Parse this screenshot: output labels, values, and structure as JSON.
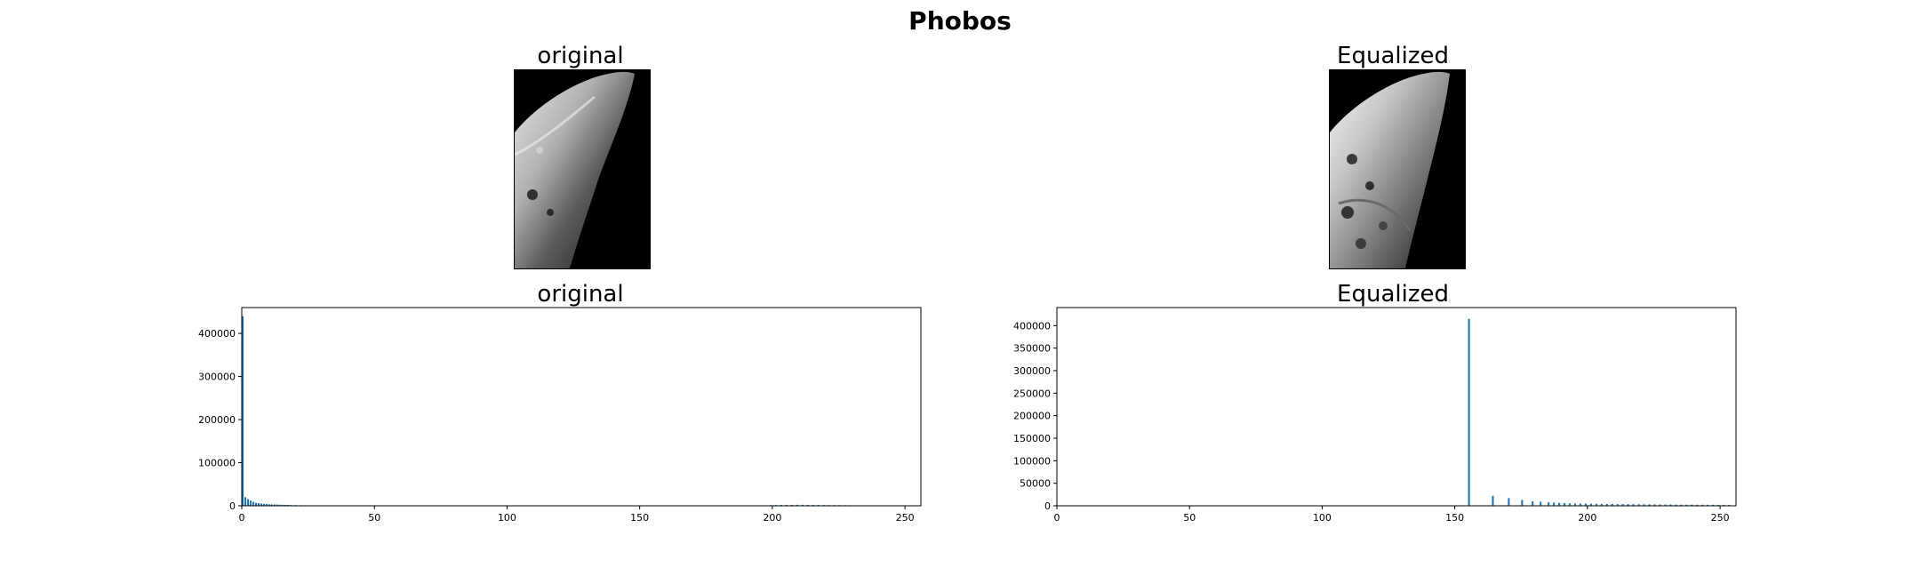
{
  "figure": {
    "title": "Phobos"
  },
  "images": [
    {
      "title": "original",
      "kind": "grayscale-photo"
    },
    {
      "title": "Equalized",
      "kind": "grayscale-photo"
    }
  ],
  "colors": {
    "bar": "#1f77b4",
    "axes": "#000000"
  },
  "chart_data": [
    {
      "type": "bar",
      "title": "original",
      "xlabel": "",
      "ylabel": "",
      "xlim": [
        0,
        256
      ],
      "ylim": [
        0,
        460000
      ],
      "xticks": [
        0,
        50,
        100,
        150,
        200,
        250
      ],
      "yticks": [
        0,
        100000,
        200000,
        300000,
        400000
      ],
      "grid": false,
      "series": [
        {
          "x": [
            0,
            1,
            2,
            3,
            4,
            5,
            6,
            7,
            8,
            9,
            10,
            11,
            12,
            13,
            14,
            15,
            16,
            17,
            18,
            20,
            22,
            24,
            26,
            28,
            30,
            32,
            35,
            40,
            45,
            195,
            197,
            199,
            201,
            203,
            205,
            207,
            209,
            211,
            213,
            215,
            217,
            219,
            221,
            223,
            225,
            227,
            229,
            231,
            233
          ],
          "y": [
            440000,
            20000,
            15000,
            12000,
            9000,
            7000,
            6000,
            5000,
            4500,
            4000,
            3500,
            3200,
            3000,
            2800,
            2500,
            2300,
            2100,
            2000,
            1800,
            1600,
            1400,
            1200,
            1100,
            1000,
            900,
            800,
            700,
            600,
            500,
            800,
            1200,
            1500,
            1800,
            2000,
            2100,
            2200,
            2300,
            2200,
            2100,
            2000,
            1900,
            1800,
            1700,
            1600,
            1500,
            1400,
            1300,
            1200,
            1000
          ]
        }
      ]
    },
    {
      "type": "bar",
      "title": "Equalized",
      "xlabel": "",
      "ylabel": "",
      "xlim": [
        0,
        256
      ],
      "ylim": [
        0,
        440000
      ],
      "xticks": [
        0,
        50,
        100,
        150,
        200,
        250
      ],
      "yticks": [
        0,
        50000,
        100000,
        150000,
        200000,
        250000,
        300000,
        350000,
        400000
      ],
      "grid": false,
      "series": [
        {
          "x": [
            155,
            164,
            170,
            175,
            179,
            182,
            185,
            187,
            189,
            191,
            193,
            195,
            197,
            199,
            201,
            203,
            205,
            207,
            209,
            211,
            213,
            215,
            217,
            219,
            221,
            223,
            225,
            227,
            229,
            231,
            233,
            235,
            237,
            239,
            241,
            243,
            245,
            247,
            249,
            251,
            253
          ],
          "y": [
            415000,
            22000,
            17000,
            13000,
            10000,
            9000,
            8000,
            7000,
            6500,
            6000,
            5500,
            5200,
            5000,
            4800,
            4600,
            4400,
            4200,
            4000,
            3900,
            3800,
            3700,
            3600,
            3500,
            3400,
            3300,
            3200,
            3100,
            3000,
            2900,
            2800,
            2700,
            2600,
            2500,
            2500,
            2400,
            2400,
            2300,
            2300,
            2200,
            2200,
            2100
          ]
        }
      ]
    }
  ]
}
